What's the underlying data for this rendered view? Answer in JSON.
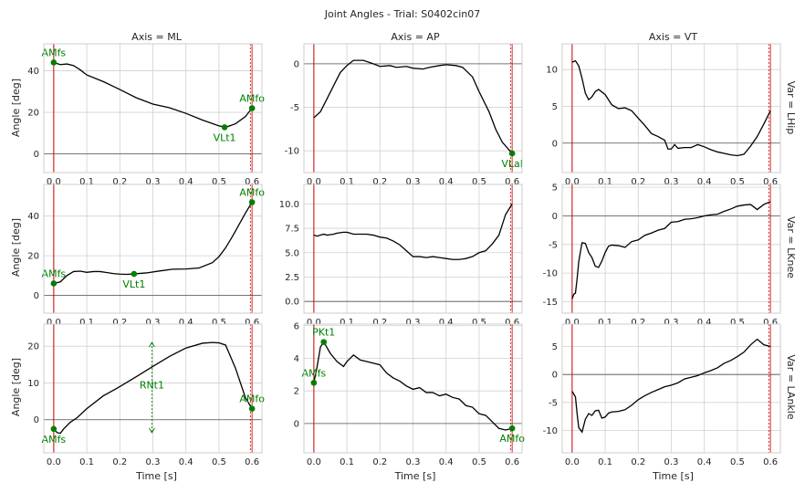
{
  "chart_data": {
    "type": "line",
    "title": "Joint Angles - Trial: S0402cin07",
    "xlabel": "Time [s]",
    "ylabel": "Angle [deg]",
    "xlim": [
      -0.03,
      0.63
    ],
    "x_ticks": [
      "0.0",
      "0.1",
      "0.2",
      "0.3",
      "0.4",
      "0.5",
      "0.6"
    ],
    "columns": [
      "Axis = ML",
      "Axis = AP",
      "Axis = VT"
    ],
    "rows": [
      "Var = LHip",
      "Var = LKnee",
      "Var = LAnkle"
    ],
    "colors": {
      "line": "#000000",
      "event": "#cc0000",
      "zero": "#555555",
      "annotation": "#008000"
    },
    "grid": true,
    "panels": [
      {
        "row": 0,
        "col": 0,
        "ylim": [
          -9,
          53
        ],
        "yticks": [
          0,
          20,
          40
        ],
        "x": [
          0,
          0.02,
          0.04,
          0.06,
          0.08,
          0.1,
          0.15,
          0.2,
          0.25,
          0.3,
          0.35,
          0.4,
          0.45,
          0.5,
          0.52,
          0.55,
          0.58,
          0.6
        ],
        "y": [
          44,
          43,
          43.3,
          42.5,
          40.5,
          38,
          34.8,
          31,
          27,
          24,
          22.2,
          19.5,
          16.3,
          13.5,
          12.8,
          14.5,
          18,
          22
        ],
        "markers": [
          {
            "x": 0,
            "y": 44,
            "label": "AMfs",
            "pos": "above"
          },
          {
            "x": 0.517,
            "y": 12.8,
            "label": "VLt1",
            "pos": "below"
          },
          {
            "x": 0.6,
            "y": 22,
            "label": "AMfo",
            "pos": "above"
          }
        ]
      },
      {
        "row": 0,
        "col": 1,
        "ylim": [
          -12.5,
          2.3
        ],
        "yticks": [
          -10,
          -5,
          0
        ],
        "x": [
          0,
          0.02,
          0.04,
          0.06,
          0.08,
          0.1,
          0.12,
          0.15,
          0.18,
          0.2,
          0.23,
          0.25,
          0.28,
          0.3,
          0.33,
          0.35,
          0.38,
          0.4,
          0.43,
          0.45,
          0.48,
          0.5,
          0.53,
          0.55,
          0.57,
          0.6
        ],
        "y": [
          -6.2,
          -5.5,
          -4,
          -2.5,
          -1,
          -0.2,
          0.4,
          0.4,
          0,
          -0.3,
          -0.2,
          -0.4,
          -0.3,
          -0.5,
          -0.6,
          -0.4,
          -0.2,
          -0.1,
          -0.2,
          -0.4,
          -1.5,
          -3.2,
          -5.5,
          -7.5,
          -9,
          -10.3
        ],
        "markers": [
          {
            "x": 0.6,
            "y": -10.3,
            "label": "VLal",
            "pos": "below"
          }
        ]
      },
      {
        "row": 0,
        "col": 2,
        "ylim": [
          -4,
          13.5
        ],
        "yticks": [
          0,
          5,
          10
        ],
        "x": [
          0,
          0.01,
          0.02,
          0.03,
          0.04,
          0.05,
          0.06,
          0.07,
          0.08,
          0.1,
          0.12,
          0.14,
          0.16,
          0.18,
          0.2,
          0.22,
          0.24,
          0.26,
          0.28,
          0.29,
          0.3,
          0.31,
          0.32,
          0.34,
          0.36,
          0.38,
          0.4,
          0.42,
          0.44,
          0.46,
          0.48,
          0.5,
          0.52,
          0.54,
          0.56,
          0.58,
          0.6
        ],
        "y": [
          11,
          11.2,
          10.5,
          8.8,
          6.8,
          5.9,
          6.3,
          7,
          7.3,
          6.6,
          5.2,
          4.7,
          4.8,
          4.4,
          3.4,
          2.4,
          1.3,
          0.9,
          0.4,
          -0.8,
          -0.8,
          -0.2,
          -0.7,
          -0.6,
          -0.6,
          -0.2,
          -0.5,
          -0.9,
          -1.2,
          -1.4,
          -1.6,
          -1.7,
          -1.5,
          -0.4,
          0.9,
          2.6,
          4.4
        ],
        "markers": []
      },
      {
        "row": 1,
        "col": 0,
        "ylim": [
          -9,
          56
        ],
        "yticks": [
          0,
          20,
          40
        ],
        "x": [
          0,
          0.02,
          0.04,
          0.06,
          0.08,
          0.1,
          0.12,
          0.14,
          0.16,
          0.18,
          0.2,
          0.22,
          0.24,
          0.28,
          0.32,
          0.36,
          0.4,
          0.44,
          0.48,
          0.5,
          0.52,
          0.54,
          0.56,
          0.58,
          0.6
        ],
        "y": [
          6,
          6.8,
          10,
          12,
          12.2,
          11.6,
          12,
          12,
          11.5,
          11,
          10.7,
          10.6,
          10.8,
          11.3,
          12.3,
          13.2,
          13.3,
          13.8,
          16.5,
          19.5,
          24,
          29.5,
          35.5,
          41.5,
          47
        ],
        "markers": [
          {
            "x": 0,
            "y": 6,
            "label": "AMfs",
            "pos": "above"
          },
          {
            "x": 0.243,
            "y": 10.8,
            "label": "VLt1",
            "pos": "below"
          },
          {
            "x": 0.6,
            "y": 47,
            "label": "AMfo",
            "pos": "above"
          }
        ]
      },
      {
        "row": 1,
        "col": 1,
        "ylim": [
          -1.2,
          12
        ],
        "yticks": [
          0,
          2.5,
          5,
          7.5,
          10
        ],
        "x": [
          0,
          0.01,
          0.02,
          0.03,
          0.04,
          0.05,
          0.06,
          0.07,
          0.08,
          0.09,
          0.1,
          0.12,
          0.14,
          0.16,
          0.18,
          0.2,
          0.22,
          0.24,
          0.26,
          0.28,
          0.3,
          0.32,
          0.34,
          0.36,
          0.38,
          0.4,
          0.42,
          0.44,
          0.46,
          0.48,
          0.5,
          0.52,
          0.54,
          0.56,
          0.58,
          0.6
        ],
        "y": [
          6.8,
          6.7,
          6.8,
          6.9,
          6.8,
          6.85,
          6.9,
          7,
          7.05,
          7.1,
          7.1,
          6.9,
          6.9,
          6.9,
          6.8,
          6.6,
          6.5,
          6.2,
          5.8,
          5.2,
          4.6,
          4.6,
          4.5,
          4.6,
          4.5,
          4.4,
          4.3,
          4.3,
          4.4,
          4.6,
          5,
          5.2,
          5.9,
          6.8,
          8.9,
          10
        ],
        "markers": []
      },
      {
        "row": 1,
        "col": 2,
        "ylim": [
          -17,
          5.5
        ],
        "yticks": [
          -15,
          -10,
          -5,
          0,
          5
        ],
        "x": [
          0,
          0.005,
          0.01,
          0.015,
          0.02,
          0.025,
          0.03,
          0.04,
          0.05,
          0.06,
          0.07,
          0.08,
          0.09,
          0.1,
          0.11,
          0.12,
          0.14,
          0.16,
          0.18,
          0.2,
          0.22,
          0.24,
          0.26,
          0.28,
          0.3,
          0.32,
          0.34,
          0.36,
          0.38,
          0.4,
          0.42,
          0.44,
          0.46,
          0.48,
          0.5,
          0.52,
          0.54,
          0.56,
          0.58,
          0.6
        ],
        "y": [
          -14.5,
          -13.7,
          -13.5,
          -11,
          -8,
          -6.3,
          -4.7,
          -4.8,
          -6.4,
          -7.3,
          -8.8,
          -9,
          -7.9,
          -6.4,
          -5.3,
          -5.1,
          -5.2,
          -5.5,
          -4.5,
          -4.2,
          -3.4,
          -3,
          -2.5,
          -2.2,
          -1.1,
          -1,
          -0.6,
          -0.5,
          -0.3,
          0,
          0.2,
          0.3,
          0.8,
          1.2,
          1.7,
          1.9,
          2,
          1.1,
          2,
          2.5
        ],
        "markers": []
      },
      {
        "row": 2,
        "col": 0,
        "ylim": [
          -9,
          26
        ],
        "yticks": [
          0,
          10,
          20
        ],
        "x": [
          0,
          0.01,
          0.02,
          0.03,
          0.05,
          0.07,
          0.1,
          0.15,
          0.2,
          0.25,
          0.3,
          0.35,
          0.4,
          0.45,
          0.48,
          0.5,
          0.52,
          0.55,
          0.58,
          0.6
        ],
        "y": [
          -2.5,
          -3.5,
          -3.7,
          -2.5,
          -0.7,
          0.5,
          3,
          6.5,
          9,
          11.7,
          14.5,
          17.2,
          19.5,
          20.8,
          21,
          20.9,
          20.3,
          14,
          6,
          3
        ],
        "markers": [
          {
            "x": 0,
            "y": -2.5,
            "label": "AMfs",
            "pos": "below"
          },
          {
            "x": 0.6,
            "y": 3,
            "label": "AMfo",
            "pos": "above"
          }
        ],
        "range_annotation": {
          "x": 0.297,
          "y_top": 21,
          "y_bottom": -3.5,
          "label": "RNt1",
          "label_y": 9.5
        }
      },
      {
        "row": 2,
        "col": 1,
        "ylim": [
          -1.8,
          6.1
        ],
        "yticks": [
          0,
          2,
          4,
          6
        ],
        "x": [
          0,
          0.01,
          0.02,
          0.03,
          0.05,
          0.07,
          0.09,
          0.1,
          0.12,
          0.14,
          0.16,
          0.2,
          0.22,
          0.24,
          0.26,
          0.28,
          0.3,
          0.32,
          0.34,
          0.36,
          0.38,
          0.4,
          0.42,
          0.44,
          0.46,
          0.48,
          0.5,
          0.52,
          0.54,
          0.56,
          0.58,
          0.6
        ],
        "y": [
          2.5,
          3.5,
          4.7,
          5,
          4.3,
          3.8,
          3.5,
          3.8,
          4.2,
          3.9,
          3.8,
          3.6,
          3.1,
          2.8,
          2.6,
          2.3,
          2.1,
          2.2,
          1.9,
          1.9,
          1.7,
          1.8,
          1.6,
          1.5,
          1.1,
          1,
          0.6,
          0.5,
          0.1,
          -0.3,
          -0.4,
          -0.3
        ],
        "markers": [
          {
            "x": 0,
            "y": 2.5,
            "label": "AMfs",
            "pos": "above"
          },
          {
            "x": 0.03,
            "y": 5,
            "label": "PKt1",
            "pos": "above"
          },
          {
            "x": 0.6,
            "y": -0.3,
            "label": "AMfo",
            "pos": "below"
          }
        ]
      },
      {
        "row": 2,
        "col": 2,
        "ylim": [
          -14,
          9
        ],
        "yticks": [
          -10,
          -5,
          0,
          5
        ],
        "x": [
          0,
          0.005,
          0.01,
          0.015,
          0.02,
          0.03,
          0.04,
          0.05,
          0.06,
          0.07,
          0.08,
          0.09,
          0.1,
          0.11,
          0.12,
          0.14,
          0.16,
          0.18,
          0.2,
          0.22,
          0.24,
          0.26,
          0.28,
          0.3,
          0.32,
          0.34,
          0.36,
          0.38,
          0.4,
          0.42,
          0.44,
          0.46,
          0.48,
          0.5,
          0.52,
          0.54,
          0.56,
          0.58,
          0.6
        ],
        "y": [
          -3,
          -3.5,
          -4,
          -7,
          -9.5,
          -10.3,
          -8,
          -7,
          -7.3,
          -6.5,
          -6.4,
          -7.8,
          -7.6,
          -6.9,
          -6.7,
          -6.6,
          -6.3,
          -5.5,
          -4.5,
          -3.8,
          -3.2,
          -2.7,
          -2.2,
          -1.9,
          -1.5,
          -0.8,
          -0.5,
          -0.2,
          0.3,
          0.7,
          1.2,
          2,
          2.5,
          3.2,
          4,
          5.3,
          6.3,
          5.3,
          5
        ],
        "markers": []
      }
    ]
  }
}
